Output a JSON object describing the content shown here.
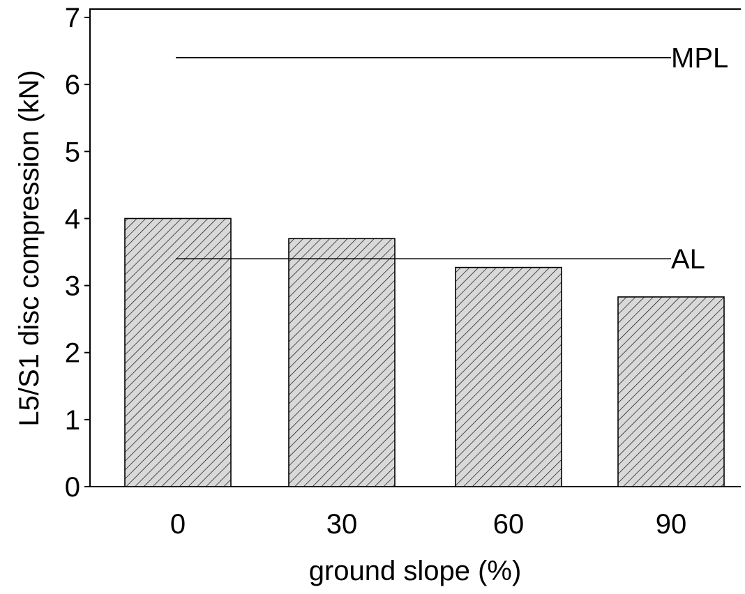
{
  "chart_data": {
    "type": "bar",
    "xlabel": "ground slope (%)",
    "ylabel": "L5/S1 disc compression (kN)",
    "categories": [
      "0",
      "30",
      "60",
      "90"
    ],
    "values": [
      4.0,
      3.7,
      3.27,
      2.83
    ],
    "ylim": [
      0,
      7
    ],
    "yticks": [
      "0",
      "1",
      "2",
      "3",
      "4",
      "5",
      "6",
      "7"
    ],
    "grid": false,
    "reference_lines": [
      {
        "label": "MPL",
        "value": 6.4
      },
      {
        "label": "AL",
        "value": 3.4
      }
    ],
    "colors": {
      "bar_fill": "#d9d9d9",
      "hatch": "#000000",
      "line": "#000000"
    }
  }
}
